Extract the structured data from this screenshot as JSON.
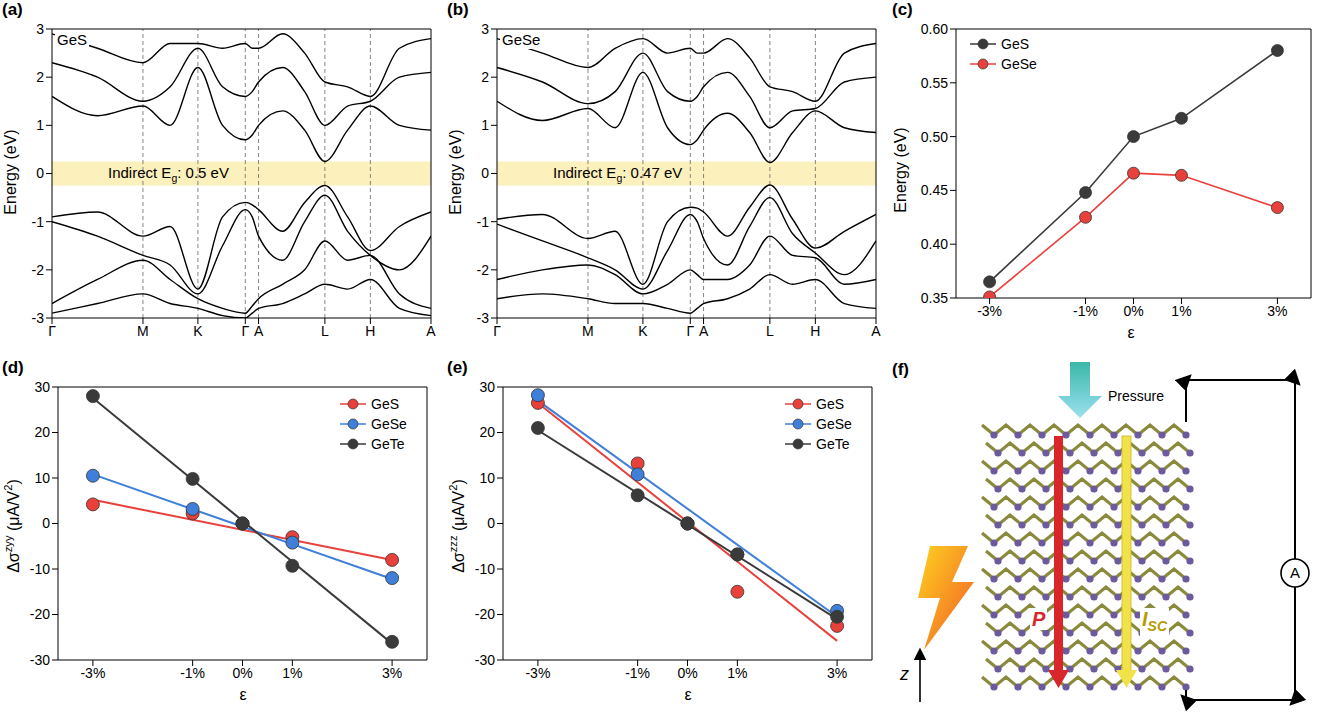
{
  "chart_data": [
    {
      "label": "(a)",
      "type": "line",
      "title": "GeS",
      "annotation": [
        {
          "t": "Indirect E"
        },
        {
          "sub": "g"
        },
        {
          "t": ": 0.5 eV"
        }
      ],
      "ylabel": "Energy (eV)",
      "x": [
        0,
        0.72,
        1.44,
        1.87,
        2.31,
        2.7,
        3.06,
        3.17,
        3.27,
        3.65,
        4.0,
        4.32,
        4.68,
        5.04,
        5.5,
        6.0
      ],
      "series": [
        {
          "color": "#000000",
          "values": [
            -0.9,
            -0.8,
            -1.3,
            -1.1,
            -2.4,
            -0.9,
            -0.6,
            -0.65,
            -0.75,
            -1.2,
            -0.6,
            -0.25,
            -0.9,
            -1.6,
            -1.1,
            -0.8
          ]
        },
        {
          "color": "#000000",
          "values": [
            -1.0,
            -1.3,
            -1.7,
            -1.9,
            -2.5,
            -1.5,
            -0.75,
            -0.9,
            -1.3,
            -1.8,
            -1.0,
            -0.45,
            -1.2,
            -1.7,
            -2.0,
            -1.3
          ]
        },
        {
          "color": "#000000",
          "values": [
            -2.7,
            -2.2,
            -1.8,
            -2.2,
            -2.6,
            -2.8,
            -2.9,
            -2.75,
            -2.6,
            -2.3,
            -2.0,
            -1.4,
            -1.8,
            -1.7,
            -2.5,
            -2.8
          ]
        },
        {
          "color": "#000000",
          "values": [
            -2.9,
            -2.7,
            -2.5,
            -2.7,
            -2.8,
            -2.95,
            -3.0,
            -2.9,
            -2.8,
            -2.7,
            -2.5,
            -2.3,
            -2.4,
            -2.2,
            -2.8,
            -2.95
          ]
        },
        {
          "color": "#000000",
          "values": [
            1.6,
            1.2,
            1.4,
            1.0,
            2.2,
            1.0,
            0.7,
            0.8,
            1.0,
            1.3,
            0.9,
            0.25,
            0.9,
            1.4,
            1.0,
            0.9
          ]
        },
        {
          "color": "#000000",
          "values": [
            2.3,
            2.0,
            1.5,
            1.8,
            2.6,
            1.8,
            1.6,
            1.7,
            1.9,
            2.2,
            1.7,
            1.0,
            1.4,
            1.5,
            2.0,
            2.1
          ]
        },
        {
          "color": "#000000",
          "values": [
            2.9,
            2.6,
            2.3,
            2.7,
            2.7,
            2.6,
            2.7,
            2.6,
            2.6,
            2.9,
            2.5,
            1.9,
            1.8,
            1.6,
            2.6,
            2.8
          ]
        }
      ],
      "gap_band": [
        -0.25,
        0.25
      ],
      "xlim": [
        0,
        6
      ],
      "xticks": [
        {
          "value": 0,
          "label": "Γ"
        },
        {
          "value": 1.44,
          "label": "M"
        },
        {
          "value": 2.31,
          "label": "K"
        },
        {
          "value": 3.06,
          "label": "Γ"
        },
        {
          "value": 3.27,
          "label": "A"
        },
        {
          "value": 4.32,
          "label": "L"
        },
        {
          "value": 5.04,
          "label": "H"
        },
        {
          "value": 6.0,
          "label": "A"
        }
      ],
      "ylim": [
        -3,
        3
      ],
      "yticks": [
        -3,
        -2,
        -1,
        0,
        1,
        2,
        3
      ],
      "grid": "x"
    },
    {
      "label": "(b)",
      "type": "line",
      "title": "GeSe",
      "annotation": [
        {
          "t": "Indirect E"
        },
        {
          "sub": "g"
        },
        {
          "t": ": 0.47 eV"
        }
      ],
      "ylabel": "Energy (eV)",
      "x": [
        0,
        0.72,
        1.44,
        1.87,
        2.31,
        2.7,
        3.06,
        3.17,
        3.27,
        3.65,
        4.0,
        4.32,
        4.68,
        5.04,
        5.5,
        6.0
      ],
      "series": [
        {
          "color": "#000000",
          "values": [
            -0.95,
            -0.85,
            -1.35,
            -1.2,
            -2.3,
            -1.0,
            -0.7,
            -0.72,
            -0.8,
            -1.3,
            -0.7,
            -0.24,
            -0.95,
            -1.55,
            -1.2,
            -0.85
          ]
        },
        {
          "color": "#000000",
          "values": [
            -1.05,
            -1.4,
            -1.75,
            -2.0,
            -2.4,
            -1.6,
            -0.85,
            -1.0,
            -1.35,
            -1.9,
            -1.1,
            -0.5,
            -1.25,
            -1.65,
            -2.1,
            -1.4
          ]
        },
        {
          "color": "#000000",
          "values": [
            -2.2,
            -2.0,
            -1.9,
            -2.1,
            -2.5,
            -2.3,
            -2.0,
            -2.1,
            -2.2,
            -2.2,
            -1.9,
            -1.3,
            -1.7,
            -1.75,
            -2.3,
            -2.2
          ]
        },
        {
          "color": "#000000",
          "values": [
            -2.6,
            -2.5,
            -2.6,
            -2.7,
            -2.7,
            -2.8,
            -2.9,
            -2.8,
            -2.7,
            -2.6,
            -2.4,
            -2.1,
            -2.3,
            -2.2,
            -2.7,
            -2.8
          ]
        },
        {
          "color": "#000000",
          "values": [
            1.5,
            1.1,
            1.35,
            0.95,
            2.1,
            0.95,
            0.6,
            0.7,
            0.9,
            1.25,
            0.85,
            0.23,
            0.85,
            1.3,
            0.95,
            0.85
          ]
        },
        {
          "color": "#000000",
          "values": [
            2.2,
            1.9,
            1.45,
            1.7,
            2.5,
            1.7,
            1.5,
            1.6,
            1.8,
            2.1,
            1.6,
            0.95,
            1.3,
            1.35,
            1.9,
            2.0
          ]
        },
        {
          "color": "#000000",
          "values": [
            2.8,
            2.5,
            2.2,
            2.6,
            2.8,
            2.5,
            2.6,
            2.5,
            2.5,
            2.8,
            2.4,
            1.8,
            1.7,
            1.5,
            2.5,
            2.7
          ]
        }
      ],
      "gap_band": [
        -0.25,
        0.25
      ],
      "xlim": [
        0,
        6
      ],
      "xticks": [
        {
          "value": 0,
          "label": "Γ"
        },
        {
          "value": 1.44,
          "label": "M"
        },
        {
          "value": 2.31,
          "label": "K"
        },
        {
          "value": 3.06,
          "label": "Γ"
        },
        {
          "value": 3.27,
          "label": "A"
        },
        {
          "value": 4.32,
          "label": "L"
        },
        {
          "value": 5.04,
          "label": "H"
        },
        {
          "value": 6.0,
          "label": "A"
        }
      ],
      "ylim": [
        -3,
        3
      ],
      "yticks": [
        -3,
        -2,
        -1,
        0,
        1,
        2,
        3
      ],
      "grid": "x"
    },
    {
      "label": "(c)",
      "type": "line",
      "xlabel": "ε",
      "ylabel": "Energy (eV)",
      "x": [
        -3,
        -1,
        0,
        1,
        3
      ],
      "series": [
        {
          "name": "GeS",
          "color": "#3a3a3a",
          "marker": "circle",
          "values": [
            0.365,
            0.448,
            0.5,
            0.517,
            0.58
          ]
        },
        {
          "name": "GeSe",
          "color": "#e8413c",
          "marker": "circle",
          "values": [
            0.351,
            0.425,
            0.466,
            0.464,
            0.434
          ]
        }
      ],
      "xlim": [
        -3.7,
        3.7
      ],
      "xticks": [
        {
          "value": -3,
          "label": "-3%"
        },
        {
          "value": -1,
          "label": "-1%"
        },
        {
          "value": 0,
          "label": "0%"
        },
        {
          "value": 1,
          "label": "1%"
        },
        {
          "value": 3,
          "label": "3%"
        }
      ],
      "ylim": [
        0.35,
        0.6
      ],
      "yticks": [
        0.35,
        {
          "value": 0.4,
          "label": "0.40"
        },
        0.45,
        {
          "value": 0.5,
          "label": "0.50"
        },
        0.55,
        {
          "value": 0.6,
          "label": "0.60"
        }
      ],
      "legend": "upper left"
    },
    {
      "label": "(d)",
      "type": "scatter",
      "xlabel": "ε",
      "ylabel": [
        {
          "t": "Δσ"
        },
        {
          "sup": "zyy"
        },
        {
          "t": " (μA/V"
        },
        {
          "sup": "2"
        },
        {
          "t": ")"
        }
      ],
      "x": [
        -3,
        -1,
        0,
        1,
        3
      ],
      "series": [
        {
          "name": "GeS",
          "color": "#e8413c",
          "marker": "circle",
          "values": [
            4.2,
            2.2,
            0,
            -3.0,
            -8.0
          ],
          "fit": {
            "x": [
              -3,
              3
            ],
            "values": [
              5.2,
              -8.0
            ]
          }
        },
        {
          "name": "GeSe",
          "color": "#3f7fd9",
          "marker": "circle",
          "values": [
            10.5,
            3.2,
            0,
            -4.2,
            -12.0
          ],
          "fit": {
            "x": [
              -3,
              3
            ],
            "values": [
              10.8,
              -12.2
            ]
          }
        },
        {
          "name": "GeTe",
          "color": "#3a3a3a",
          "marker": "circle",
          "values": [
            28.0,
            9.8,
            0,
            -9.3,
            -26.0
          ],
          "fit": {
            "x": [
              -3,
              3
            ],
            "values": [
              27.6,
              -26.4
            ]
          }
        }
      ],
      "xlim": [
        -3.7,
        3.7
      ],
      "xticks": [
        {
          "value": -3,
          "label": "-3%"
        },
        {
          "value": -1,
          "label": "-1%"
        },
        {
          "value": 0,
          "label": "0%"
        },
        {
          "value": 1,
          "label": "1%"
        },
        {
          "value": 3,
          "label": "3%"
        }
      ],
      "ylim": [
        -30,
        30
      ],
      "yticks": [
        -30,
        -20,
        -10,
        0,
        10,
        20,
        30
      ],
      "legend": "upper right"
    },
    {
      "label": "(e)",
      "type": "scatter",
      "xlabel": "ε",
      "ylabel": [
        {
          "t": "Δσ"
        },
        {
          "sup": "zzz"
        },
        {
          "t": " (μA/V"
        },
        {
          "sup": "2"
        },
        {
          "t": ")"
        }
      ],
      "x": [
        -3,
        -1,
        0,
        1,
        3
      ],
      "series": [
        {
          "name": "GeS",
          "color": "#e8413c",
          "marker": "circle",
          "values": [
            26.5,
            13.2,
            0,
            -15.0,
            -22.5
          ],
          "fit": {
            "x": [
              -3,
              3
            ],
            "values": [
              26.5,
              -25.8
            ]
          }
        },
        {
          "name": "GeSe",
          "color": "#3f7fd9",
          "marker": "circle",
          "values": [
            28.2,
            10.8,
            0,
            -6.8,
            -19.2
          ],
          "fit": {
            "x": [
              -3,
              3
            ],
            "values": [
              27.0,
              -20.5
            ]
          }
        },
        {
          "name": "GeTe",
          "color": "#3a3a3a",
          "marker": "circle",
          "values": [
            21.0,
            6.2,
            0,
            -6.8,
            -20.5
          ],
          "fit": {
            "x": [
              -3,
              3
            ],
            "values": [
              20.5,
              -21.0
            ]
          }
        }
      ],
      "xlim": [
        -3.7,
        3.7
      ],
      "xticks": [
        {
          "value": -3,
          "label": "-3%"
        },
        {
          "value": -1,
          "label": "-1%"
        },
        {
          "value": 0,
          "label": "0%"
        },
        {
          "value": 1,
          "label": "1%"
        },
        {
          "value": 3,
          "label": "3%"
        }
      ],
      "ylim": [
        -30,
        30
      ],
      "yticks": [
        -30,
        -20,
        -10,
        0,
        10,
        20,
        30
      ],
      "legend": "upper right"
    }
  ],
  "schematic": {
    "label": "(f)",
    "pressure": "Pressure",
    "polarization": "P",
    "current": [
      {
        "t": "I"
      },
      {
        "sub": "SC"
      }
    ],
    "meter": "A",
    "axis": "z"
  }
}
